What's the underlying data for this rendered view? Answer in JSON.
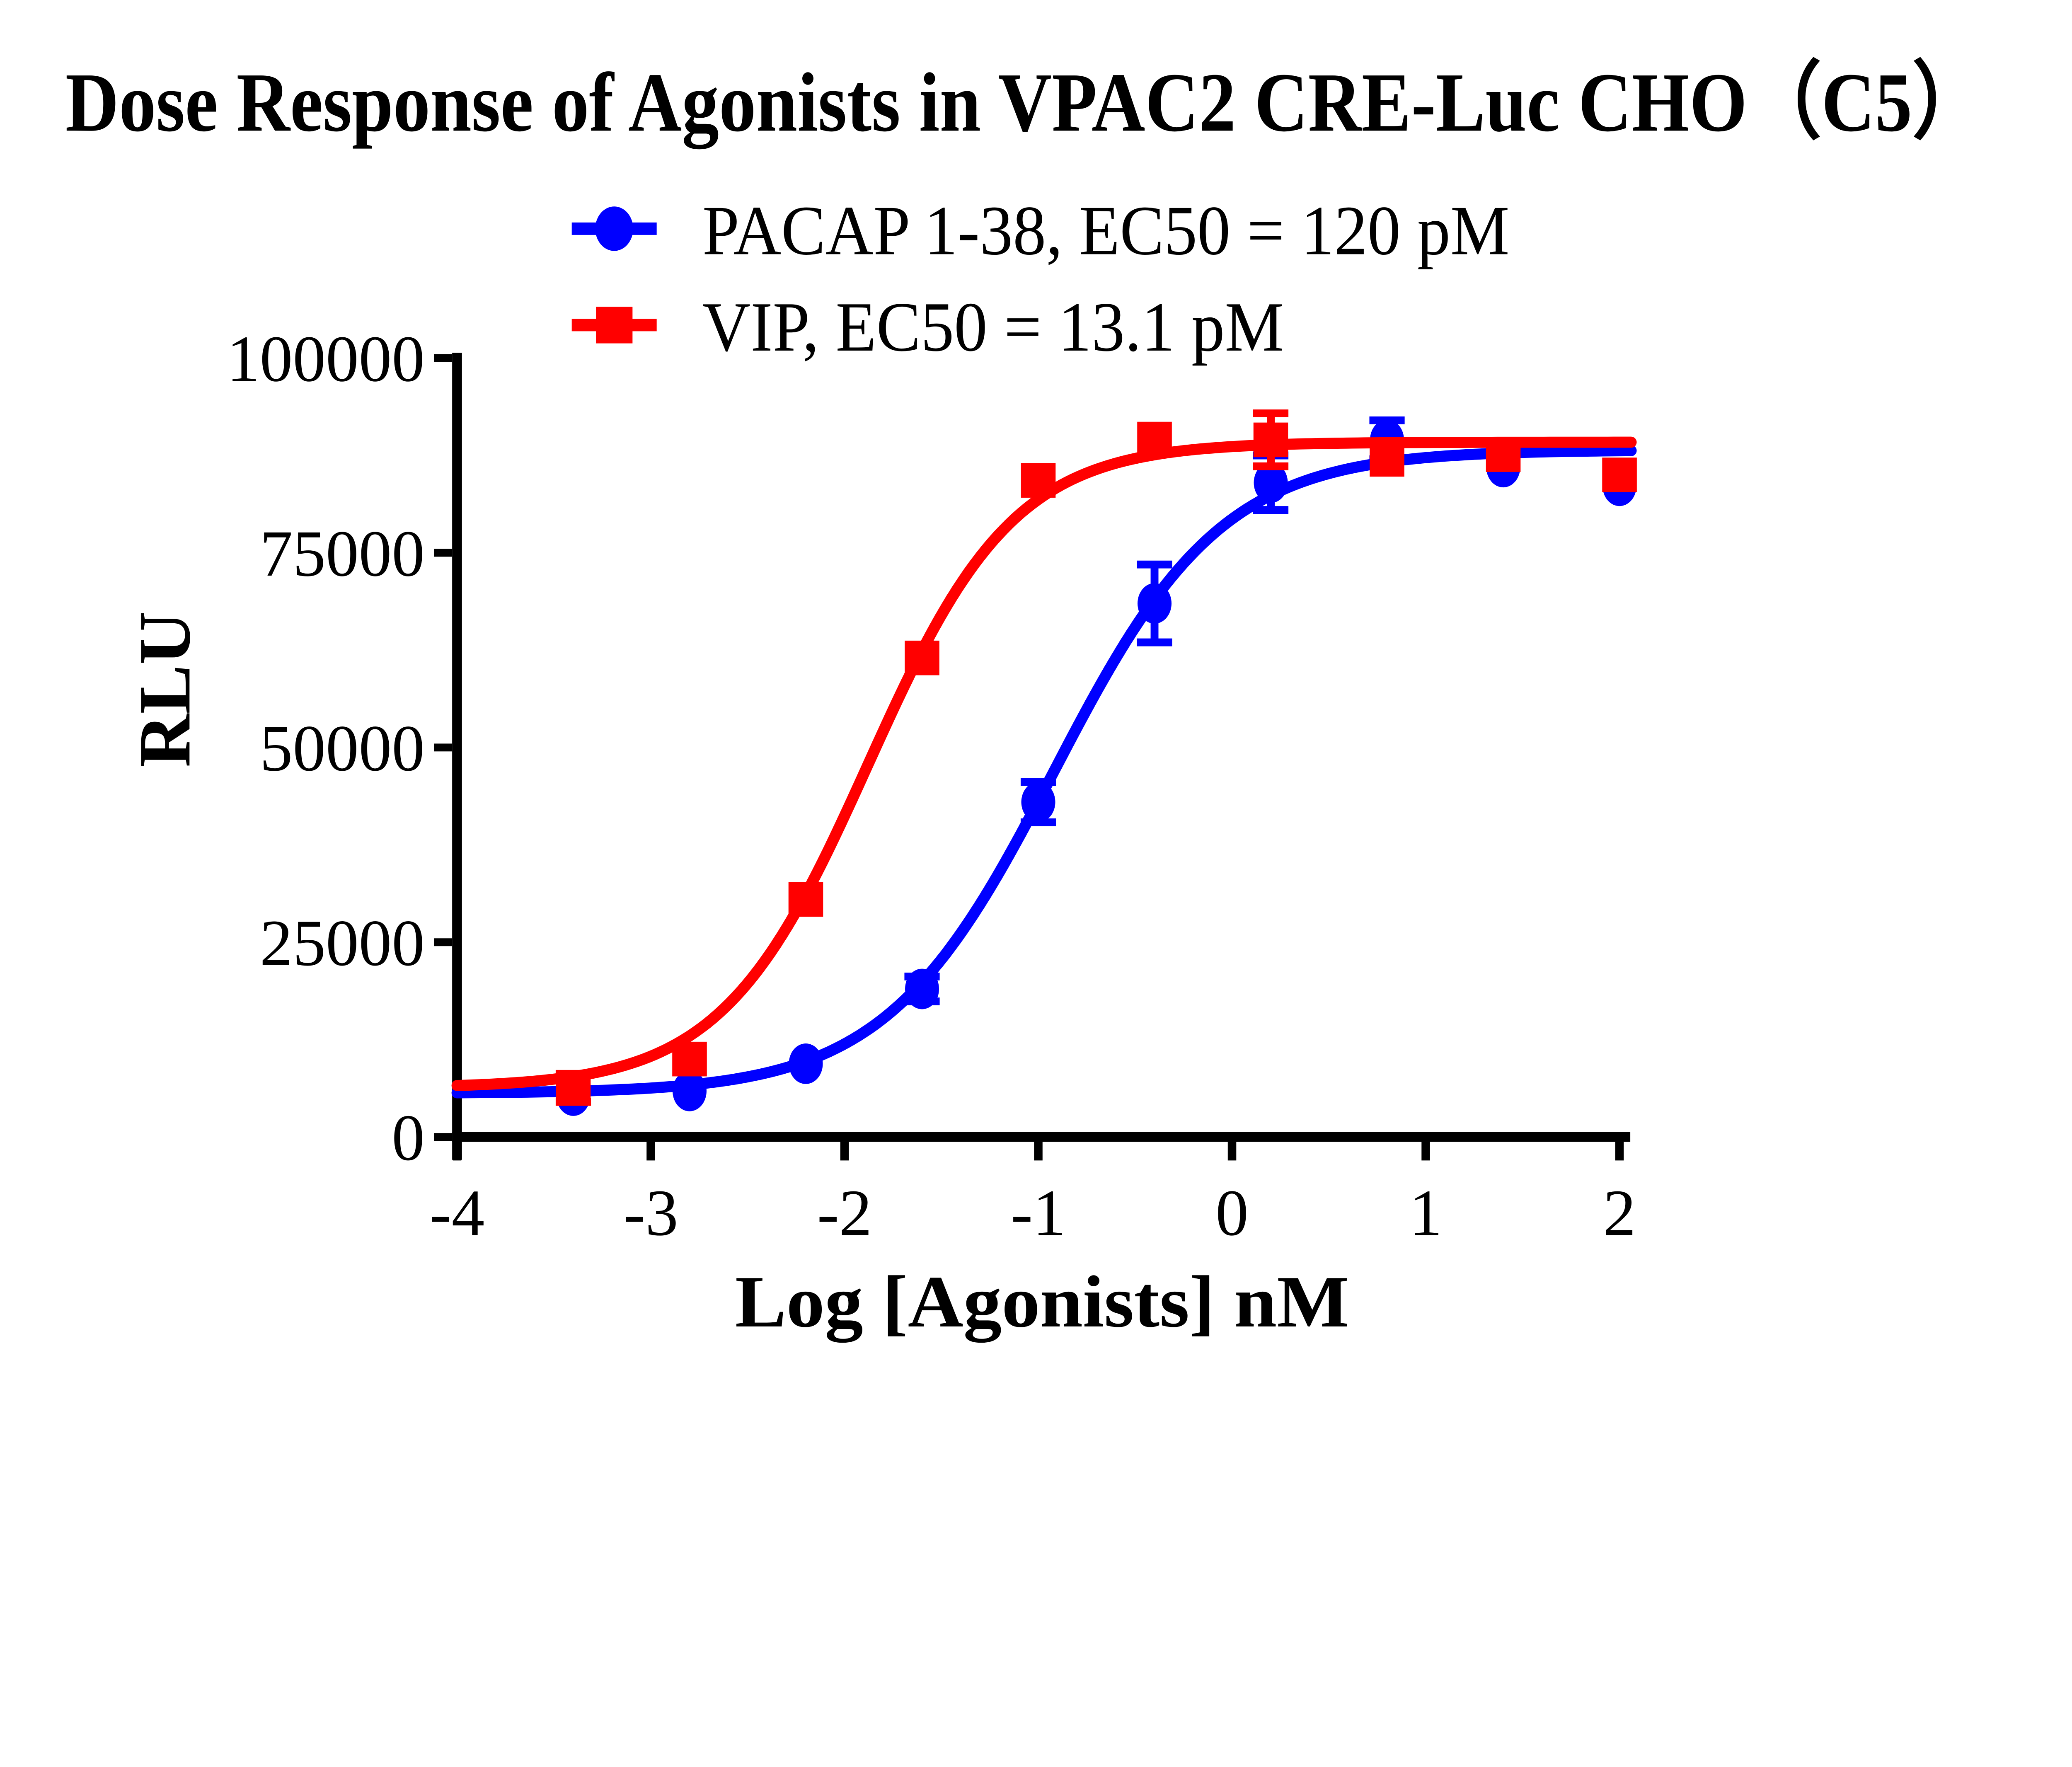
{
  "title": "Dose Response of Agonists in VPAC2 CRE-Luc CHO（C5）",
  "legend": [
    {
      "label": "PACAP 1-38, EC50 = 120 pM",
      "marker": "circle",
      "color": "#0000ff"
    },
    {
      "label": "VIP, EC50 = 13.1 pM",
      "marker": "square",
      "color": "#ff0000"
    }
  ],
  "axes": {
    "x": {
      "title": "Log [Agonists] nM",
      "ticks": [
        -4,
        -3,
        -2,
        -1,
        0,
        1,
        2
      ]
    },
    "y": {
      "title": "RLU",
      "ticks": [
        0,
        25000,
        50000,
        75000,
        100000
      ]
    }
  },
  "chart_data": {
    "type": "scatter",
    "subtype": "dose-response-sigmoid-fit",
    "title": "Dose Response of Agonists in VPAC2 CRE-Luc CHO（C5）",
    "xlabel": "Log [Agonists] nM",
    "ylabel": "RLU",
    "xlim": [
      -4,
      2
    ],
    "ylim": [
      0,
      100000
    ],
    "grid": false,
    "legend_position": "top",
    "x": [
      -3.4,
      -2.8,
      -2.2,
      -1.6,
      -1.0,
      -0.4,
      0.2,
      0.8,
      1.4,
      2.0
    ],
    "series": [
      {
        "name": "PACAP 1-38",
        "ec50": "120 pM",
        "color": "#0000ff",
        "marker": "circle",
        "values": [
          5300,
          5900,
          9400,
          19000,
          43000,
          68500,
          84000,
          89500,
          86000,
          83600
        ],
        "errors": [
          0,
          0,
          0,
          1600,
          2600,
          5000,
          3500,
          2500,
          0,
          0
        ],
        "fit": {
          "bottom": 5600,
          "top": 88200,
          "log_ec50": -0.92,
          "hill": 1.0
        }
      },
      {
        "name": "VIP",
        "ec50": "13.1 pM",
        "color": "#ff0000",
        "marker": "square",
        "values": [
          6300,
          10000,
          30500,
          61500,
          84300,
          89600,
          89500,
          87000,
          87600,
          85000
        ],
        "errors": [
          1800,
          0,
          0,
          0,
          0,
          0,
          3400,
          0,
          0,
          0
        ],
        "fit": {
          "bottom": 6300,
          "top": 89200,
          "log_ec50": -1.88,
          "hill": 1.15
        }
      }
    ]
  }
}
